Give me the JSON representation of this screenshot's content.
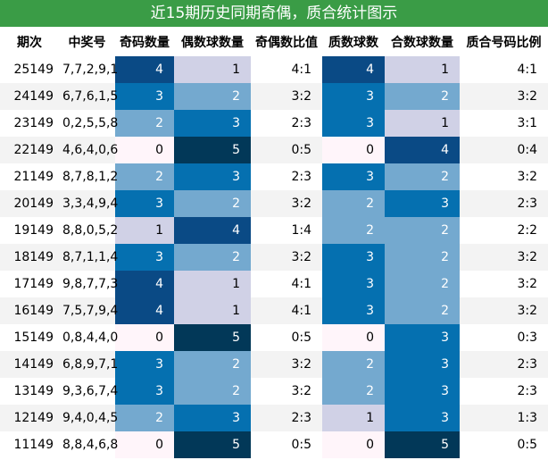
{
  "title": "近15期历史同期奇偶，质合统计图示",
  "headers": [
    "期次",
    "中奖号",
    "奇码数量",
    "偶数球数量",
    "奇偶数比值",
    "质数球数",
    "合数球数量",
    "质合号码比例"
  ],
  "rows": [
    [
      "25149",
      "7,7,2,9,1",
      "4",
      "1",
      "4:1",
      "4",
      "1",
      "4:1"
    ],
    [
      "24149",
      "6,7,6,1,5",
      "3",
      "2",
      "3:2",
      "3",
      "2",
      "3:2"
    ],
    [
      "23149",
      "0,2,5,5,8",
      "2",
      "3",
      "2:3",
      "3",
      "1",
      "3:1"
    ],
    [
      "22149",
      "4,6,4,0,6",
      "0",
      "5",
      "0:5",
      "0",
      "4",
      "0:4"
    ],
    [
      "21149",
      "8,7,8,1,2",
      "2",
      "3",
      "2:3",
      "3",
      "2",
      "3:2"
    ],
    [
      "20149",
      "3,3,4,9,4",
      "3",
      "2",
      "3:2",
      "2",
      "3",
      "2:3"
    ],
    [
      "19149",
      "8,8,0,5,2",
      "1",
      "4",
      "1:4",
      "2",
      "2",
      "2:2"
    ],
    [
      "18149",
      "8,7,1,1,4",
      "3",
      "2",
      "3:2",
      "3",
      "2",
      "3:2"
    ],
    [
      "17149",
      "9,8,7,7,3",
      "4",
      "1",
      "4:1",
      "3",
      "2",
      "3:2"
    ],
    [
      "16149",
      "7,5,7,9,4",
      "4",
      "1",
      "4:1",
      "3",
      "2",
      "3:2"
    ],
    [
      "15149",
      "0,8,4,4,0",
      "0",
      "5",
      "0:5",
      "0",
      "3",
      "0:3"
    ],
    [
      "14149",
      "6,8,9,7,1",
      "3",
      "2",
      "3:2",
      "2",
      "3",
      "2:3"
    ],
    [
      "13149",
      "9,3,6,7,4",
      "3",
      "2",
      "3:2",
      "2",
      "3",
      "2:3"
    ],
    [
      "12149",
      "9,4,0,4,5",
      "2",
      "3",
      "2:3",
      "1",
      "3",
      "1:3"
    ],
    [
      "11149",
      "8,8,4,6,8",
      "0",
      "5",
      "0:5",
      "0",
      "5",
      "0:5"
    ]
  ],
  "heatmap_colors": {
    "0": "#fff5fa",
    "1": "#d0d1e6",
    "2": "#74a9cf",
    "3": "#0570b0",
    "4": "#0a4a85",
    "5": "#023858"
  },
  "heatmap_columns": [
    2,
    3,
    5,
    6
  ]
}
